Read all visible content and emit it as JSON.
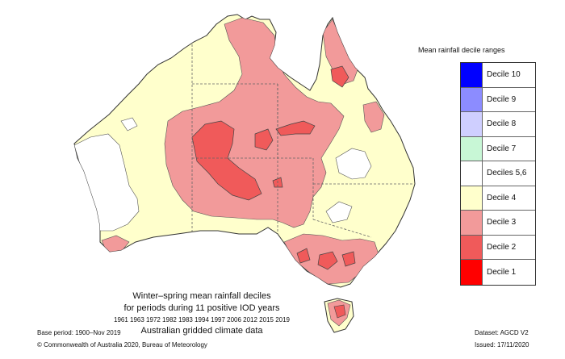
{
  "legend": {
    "title": "Mean rainfall decile ranges",
    "items": [
      {
        "label": "Decile 10",
        "color": "#0000ff"
      },
      {
        "label": "Decile 9",
        "color": "#8c8cff"
      },
      {
        "label": "Decile 8",
        "color": "#cfcfff"
      },
      {
        "label": "Decile 7",
        "color": "#c8f7d6"
      },
      {
        "label": "Deciles 5,6",
        "color": "#ffffff"
      },
      {
        "label": "Decile 4",
        "color": "#ffffcc"
      },
      {
        "label": "Decile 3",
        "color": "#f29a9a"
      },
      {
        "label": "Decile 2",
        "color": "#f05a5a"
      },
      {
        "label": "Decile 1",
        "color": "#ff0000"
      }
    ]
  },
  "caption": {
    "line1": "Winter–spring mean rainfall deciles",
    "line2": "for periods during 11 positive IOD years",
    "years": "1961 1963 1972 1982 1983 1994 1997 2006 2012 2015 2019",
    "line4": "Australian gridded climate data"
  },
  "footer": {
    "base_period": "Base period: 1900–Nov 2019",
    "copyright": "© Commonwealth of Australia 2020, Bureau of Meteorology",
    "dataset": "Dataset: AGCD V2",
    "issued": "Issued: 17/11/2020"
  }
}
